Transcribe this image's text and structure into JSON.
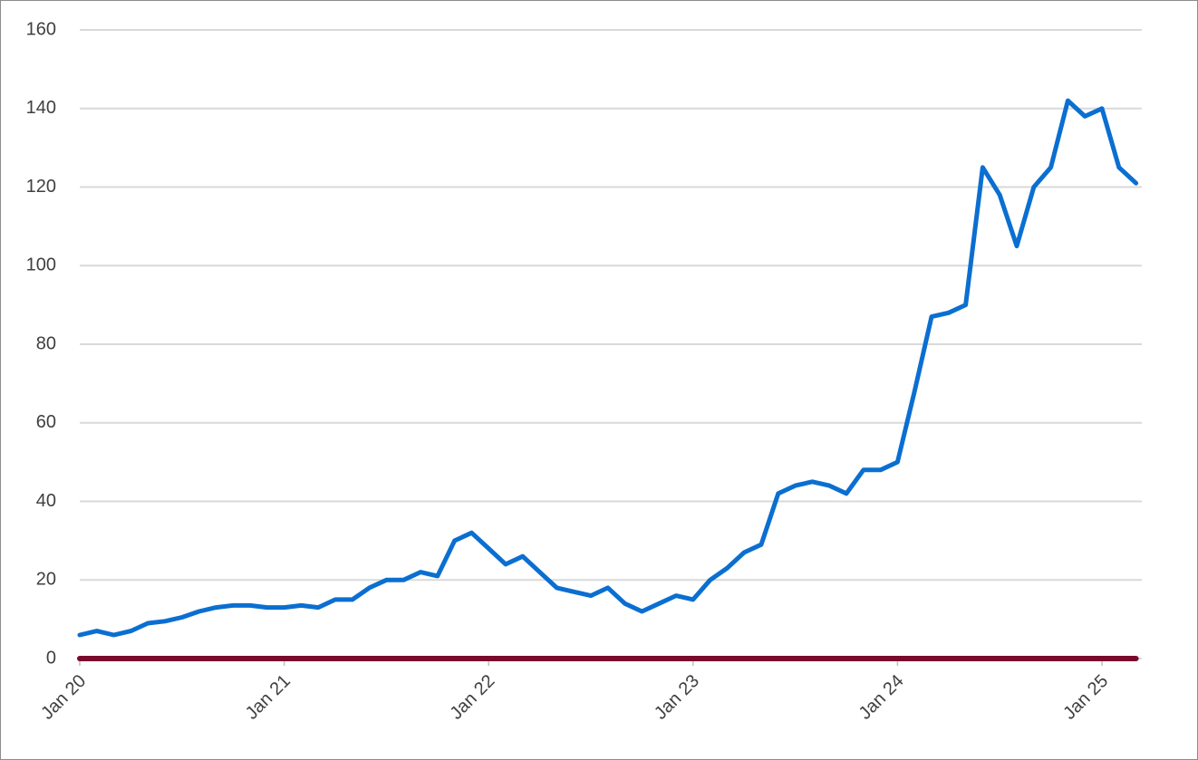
{
  "chart_data": {
    "type": "line",
    "x": [
      "2020-01",
      "2020-02",
      "2020-03",
      "2020-04",
      "2020-05",
      "2020-06",
      "2020-07",
      "2020-08",
      "2020-09",
      "2020-10",
      "2020-11",
      "2020-12",
      "2021-01",
      "2021-02",
      "2021-03",
      "2021-04",
      "2021-05",
      "2021-06",
      "2021-07",
      "2021-08",
      "2021-09",
      "2021-10",
      "2021-11",
      "2021-12",
      "2022-01",
      "2022-02",
      "2022-03",
      "2022-04",
      "2022-05",
      "2022-06",
      "2022-07",
      "2022-08",
      "2022-09",
      "2022-10",
      "2022-11",
      "2022-12",
      "2023-01",
      "2023-02",
      "2023-03",
      "2023-04",
      "2023-05",
      "2023-06",
      "2023-07",
      "2023-08",
      "2023-09",
      "2023-10",
      "2023-11",
      "2023-12",
      "2024-01",
      "2024-02",
      "2024-03",
      "2024-04",
      "2024-05",
      "2024-06",
      "2024-07",
      "2024-08",
      "2024-09",
      "2024-10",
      "2024-11",
      "2024-12",
      "2025-01",
      "2025-02",
      "2025-03"
    ],
    "series": [
      {
        "color": "#0b6fd1",
        "values": [
          6,
          7,
          6,
          7,
          9,
          9.5,
          10.5,
          12,
          13,
          13.5,
          13.5,
          13,
          13,
          13.5,
          13,
          15,
          15,
          18,
          20,
          20,
          22,
          21,
          30,
          32,
          28,
          24,
          26,
          22,
          18,
          17,
          16,
          18,
          14,
          12,
          14,
          16,
          15,
          20,
          23,
          27,
          29,
          42,
          44,
          45,
          44,
          42,
          48,
          48,
          50,
          68,
          87,
          88,
          90,
          125,
          118,
          105,
          120,
          125,
          142,
          138,
          140,
          125,
          121
        ]
      },
      {
        "color": "#7a0a2c",
        "values": [
          0,
          0,
          0,
          0,
          0,
          0,
          0,
          0,
          0,
          0,
          0,
          0,
          0,
          0,
          0,
          0,
          0,
          0,
          0,
          0,
          0,
          0,
          0,
          0,
          0,
          0,
          0,
          0,
          0,
          0,
          0,
          0,
          0,
          0,
          0,
          0,
          0,
          0,
          0,
          0,
          0,
          0,
          0,
          0,
          0,
          0,
          0,
          0,
          0,
          0,
          0,
          0,
          0,
          0,
          0,
          0,
          0,
          0,
          0,
          0,
          0,
          0,
          0
        ]
      }
    ],
    "xlim": [
      "2020-01",
      "2025-03"
    ],
    "xticks": [
      {
        "value": "2020-01",
        "label": "Jan 20"
      },
      {
        "value": "2021-01",
        "label": "Jan 21"
      },
      {
        "value": "2022-01",
        "label": "Jan 22"
      },
      {
        "value": "2023-01",
        "label": "Jan 23"
      },
      {
        "value": "2024-01",
        "label": "Jan 24"
      },
      {
        "value": "2025-01",
        "label": "Jan 25"
      }
    ],
    "ylim": [
      0,
      160
    ],
    "yticks": [
      0,
      20,
      40,
      60,
      80,
      100,
      120,
      140,
      160
    ],
    "grid": true
  }
}
